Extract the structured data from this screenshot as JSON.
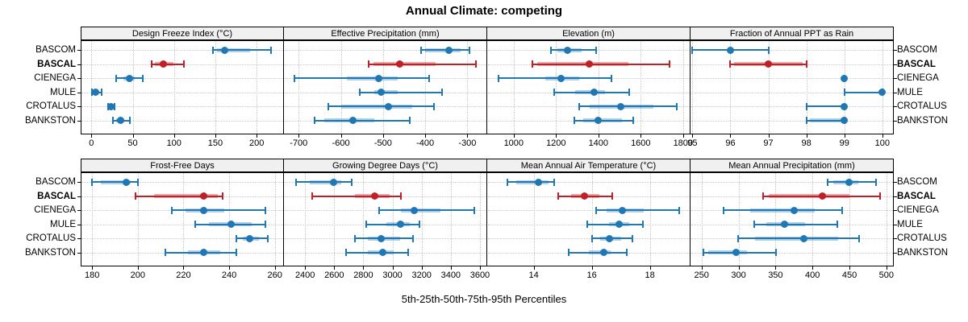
{
  "title": "Annual Climate: competing",
  "footer": "5th-25th-50th-75th-95th Percentiles",
  "sites": [
    "BASCOM",
    "BASCAL",
    "CIENEGA",
    "MULE",
    "CROTALUS",
    "BANKSTON"
  ],
  "highlight_site": "BASCAL",
  "colors": {
    "series_default": "#1f77b4",
    "series_highlight": "#bf2026",
    "band_default": "rgba(31,119,180,0.35)",
    "band_highlight": "rgba(191,32,38,0.38)",
    "strip_bg": "#f0f0f0",
    "panel_border": "#000000",
    "grid": "#c8c8c8"
  },
  "chart_data": {
    "type": "dot-whisker",
    "statistic": "5th-25th-50th-75th-95th percentiles",
    "layout": "2 rows x 4 columns, shared site axis left and right",
    "sites": [
      "BASCOM",
      "BASCAL",
      "CIENEGA",
      "MULE",
      "CROTALUS",
      "BANKSTON"
    ],
    "highlighted_site": "BASCAL",
    "panels": [
      {
        "title": "Design Freeze Index (°C)",
        "row": 1,
        "col": 1,
        "ticks": [
          0,
          50,
          100,
          150,
          200
        ],
        "xlim": [
          -13,
          233
        ],
        "series": [
          {
            "site": "BASCOM",
            "percentiles": [
              147,
              152,
              161,
              192,
              217
            ]
          },
          {
            "site": "BASCAL",
            "percentiles": [
              73,
              77,
              87,
              99,
              112
            ]
          },
          {
            "site": "CIENEGA",
            "percentiles": [
              30,
              39,
              46,
              52,
              62
            ]
          },
          {
            "site": "MULE",
            "percentiles": [
              1,
              3,
              5,
              8,
              12
            ]
          },
          {
            "site": "CROTALUS",
            "percentiles": [
              20,
              22,
              24,
              26,
              28
            ]
          },
          {
            "site": "BANKSTON",
            "percentiles": [
              26,
              30,
              35,
              40,
              47
            ]
          }
        ]
      },
      {
        "title": "Effective Precipitation (mm)",
        "row": 1,
        "col": 2,
        "ticks": [
          -700,
          -600,
          -500,
          -400,
          -300
        ],
        "xlim": [
          -735,
          -253
        ],
        "series": [
          {
            "site": "BASCOM",
            "percentiles": [
              -410,
              -400,
              -343,
              -317,
              -295
            ]
          },
          {
            "site": "BASCAL",
            "percentiles": [
              -535,
              -523,
              -460,
              -375,
              -280
            ]
          },
          {
            "site": "CIENEGA",
            "percentiles": [
              -710,
              -585,
              -510,
              -465,
              -390
            ]
          },
          {
            "site": "MULE",
            "percentiles": [
              -555,
              -520,
              -505,
              -465,
              -360
            ]
          },
          {
            "site": "CROTALUS",
            "percentiles": [
              -630,
              -600,
              -487,
              -430,
              -380
            ]
          },
          {
            "site": "BANKSTON",
            "percentiles": [
              -662,
              -640,
              -572,
              -520,
              -437
            ]
          }
        ]
      },
      {
        "title": "Elevation (m)",
        "row": 1,
        "col": 3,
        "ticks": [
          1000,
          1200,
          1400,
          1600,
          1800
        ],
        "xlim": [
          875,
          1835
        ],
        "series": [
          {
            "site": "BASCOM",
            "percentiles": [
              1175,
              1205,
              1255,
              1320,
              1390
            ]
          },
          {
            "site": "BASCAL",
            "percentiles": [
              1090,
              1110,
              1355,
              1540,
              1735
            ]
          },
          {
            "site": "CIENEGA",
            "percentiles": [
              930,
              1150,
              1225,
              1310,
              1460
            ]
          },
          {
            "site": "MULE",
            "percentiles": [
              1190,
              1290,
              1380,
              1430,
              1545
            ]
          },
          {
            "site": "CROTALUS",
            "percentiles": [
              1310,
              1360,
              1505,
              1660,
              1770
            ]
          },
          {
            "site": "BANKSTON",
            "percentiles": [
              1285,
              1330,
              1400,
              1510,
              1565
            ]
          }
        ]
      },
      {
        "title": "Fraction of Annual PPT as Rain",
        "row": 1,
        "col": 4,
        "ticks": [
          95,
          96,
          97,
          98,
          99,
          100
        ],
        "xlim": [
          94.95,
          100.3
        ],
        "series": [
          {
            "site": "BASCOM",
            "percentiles": [
              95,
              96,
              96,
              96,
              97
            ]
          },
          {
            "site": "BASCAL",
            "percentiles": [
              96,
              96.1,
              97,
              97.9,
              98
            ]
          },
          {
            "site": "CIENEGA",
            "percentiles": [
              99,
              99,
              99,
              99,
              99
            ]
          },
          {
            "site": "MULE",
            "percentiles": [
              99,
              100,
              100,
              100,
              100
            ]
          },
          {
            "site": "CROTALUS",
            "percentiles": [
              98,
              99,
              99,
              99,
              99
            ]
          },
          {
            "site": "BANKSTON",
            "percentiles": [
              98,
              98.1,
              99,
              99,
              99
            ]
          }
        ]
      },
      {
        "title": "Frost-Free Days",
        "row": 2,
        "col": 1,
        "ticks": [
          180,
          200,
          220,
          240,
          260
        ],
        "xlim": [
          175,
          264
        ],
        "series": [
          {
            "site": "BASCOM",
            "percentiles": [
              180,
              184,
              195,
              197,
              200
            ]
          },
          {
            "site": "BASCAL",
            "percentiles": [
              199,
              207,
              229,
              235,
              237
            ]
          },
          {
            "site": "CIENEGA",
            "percentiles": [
              215,
              221,
              229,
              238,
              256
            ]
          },
          {
            "site": "MULE",
            "percentiles": [
              225,
              231,
              241,
              250,
              256
            ]
          },
          {
            "site": "CROTALUS",
            "percentiles": [
              243,
              246,
              249,
              253,
              257
            ]
          },
          {
            "site": "BANKSTON",
            "percentiles": [
              212,
              222,
              229,
              236,
              243
            ]
          }
        ]
      },
      {
        "title": "Growing Degree Days (°C)",
        "row": 2,
        "col": 2,
        "ticks": [
          2400,
          2600,
          2800,
          3000,
          3200,
          3400,
          3600
        ],
        "xlim": [
          2255,
          3650
        ],
        "series": [
          {
            "site": "BASCOM",
            "percentiles": [
              2340,
              2430,
              2595,
              2650,
              2720
            ]
          },
          {
            "site": "BASCAL",
            "percentiles": [
              2450,
              2740,
              2875,
              2980,
              3060
            ]
          },
          {
            "site": "CIENEGA",
            "percentiles": [
              2910,
              3060,
              3150,
              3330,
              3560
            ]
          },
          {
            "site": "MULE",
            "percentiles": [
              2820,
              2960,
              3055,
              3120,
              3185
            ]
          },
          {
            "site": "CROTALUS",
            "percentiles": [
              2740,
              2830,
              2920,
              3050,
              3140
            ]
          },
          {
            "site": "BANKSTON",
            "percentiles": [
              2680,
              2830,
              2935,
              3010,
              3110
            ]
          }
        ]
      },
      {
        "title": "Mean Annual Air Temperature (°C)",
        "row": 2,
        "col": 3,
        "ticks": [
          14,
          16,
          18
        ],
        "xlim": [
          12.4,
          19.4
        ],
        "series": [
          {
            "site": "BASCOM",
            "percentiles": [
              13.1,
              13.4,
              14.15,
              14.5,
              14.7
            ]
          },
          {
            "site": "BASCAL",
            "percentiles": [
              14.85,
              15.3,
              15.75,
              16.25,
              16.7
            ]
          },
          {
            "site": "CIENEGA",
            "percentiles": [
              16.15,
              16.5,
              17.05,
              17.8,
              19.0
            ]
          },
          {
            "site": "MULE",
            "percentiles": [
              15.85,
              16.6,
              16.95,
              17.3,
              17.75
            ]
          },
          {
            "site": "CROTALUS",
            "percentiles": [
              16.0,
              16.3,
              16.6,
              17.0,
              17.4
            ]
          },
          {
            "site": "BANKSTON",
            "percentiles": [
              15.2,
              15.9,
              16.4,
              16.65,
              17.2
            ]
          }
        ]
      },
      {
        "title": "Mean Annual Precipitation (mm)",
        "row": 2,
        "col": 4,
        "ticks": [
          250,
          300,
          350,
          400,
          450,
          500
        ],
        "xlim": [
          235,
          510
        ],
        "series": [
          {
            "site": "BASCOM",
            "percentiles": [
              421,
              428,
              449,
              462,
              486
            ]
          },
          {
            "site": "BASCAL",
            "percentiles": [
              333,
              341,
              413,
              450,
              491
            ]
          },
          {
            "site": "CIENEGA",
            "percentiles": [
              280,
              316,
              375,
              403,
              440
            ]
          },
          {
            "site": "MULE",
            "percentiles": [
              321,
              338,
              362,
              390,
              434
            ]
          },
          {
            "site": "CROTALUS",
            "percentiles": [
              299,
              322,
              388,
              435,
              463
            ]
          },
          {
            "site": "BANKSTON",
            "percentiles": [
              252,
              259,
              297,
              311,
              351
            ]
          }
        ]
      }
    ]
  }
}
